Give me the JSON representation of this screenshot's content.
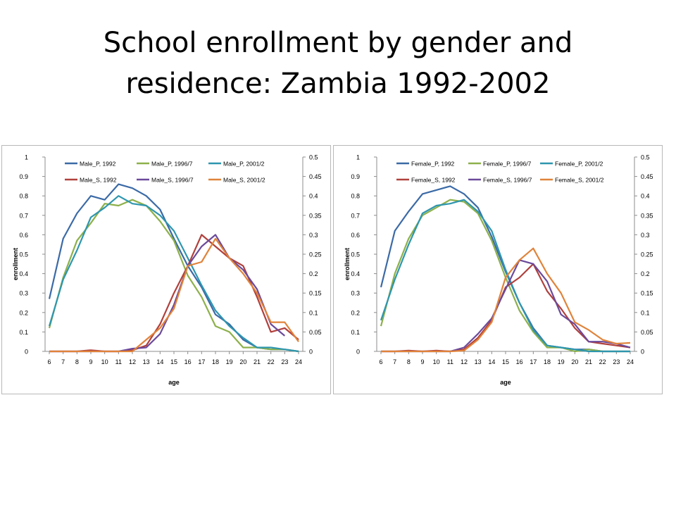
{
  "slide": {
    "title_line1": "School enrollment by gender and",
    "title_line2": "residence: Zambia 1992-2002"
  },
  "chart_data": [
    {
      "type": "line",
      "ylabel": "enrollment",
      "xlabel": "age",
      "x": [
        6,
        7,
        8,
        9,
        10,
        11,
        12,
        13,
        14,
        15,
        16,
        17,
        18,
        19,
        20,
        21,
        22,
        23,
        24
      ],
      "ylim": [
        0,
        1
      ],
      "y_ticks": [
        "0",
        "0.1",
        "0.2",
        "0.3",
        "0.4",
        "0.5",
        "0.6",
        "0.7",
        "0.8",
        "0.9",
        "1"
      ],
      "y2lim": [
        0,
        0.5
      ],
      "y2_ticks": [
        "0",
        "0.05",
        "0.1",
        "0.15",
        "0.2",
        "0.25",
        "0.3",
        "0.35",
        "0.4",
        "0.45",
        "0.5"
      ],
      "legend_position": "top",
      "series": [
        {
          "name": "Male_P, 1992",
          "axis": "left",
          "color": "#3b6aa6",
          "values": [
            0.27,
            0.58,
            0.71,
            0.8,
            0.78,
            0.86,
            0.84,
            0.8,
            0.73,
            0.58,
            0.44,
            0.33,
            0.19,
            0.14,
            0.06,
            0.02,
            0.01,
            0.01,
            0.0
          ]
        },
        {
          "name": "Male_P, 1996/7",
          "axis": "left",
          "color": "#8db04a",
          "values": [
            0.12,
            0.38,
            0.57,
            0.66,
            0.76,
            0.75,
            0.78,
            0.75,
            0.67,
            0.57,
            0.39,
            0.28,
            0.13,
            0.1,
            0.02,
            0.02,
            0.01,
            0.01,
            0.0
          ]
        },
        {
          "name": "Male_P, 2001/2",
          "axis": "left",
          "color": "#2e96ae",
          "values": [
            0.13,
            0.37,
            0.52,
            0.69,
            0.74,
            0.8,
            0.76,
            0.75,
            0.7,
            0.62,
            0.48,
            0.34,
            0.21,
            0.13,
            0.07,
            0.02,
            0.02,
            0.01,
            0.0
          ]
        },
        {
          "name": "Male_S, 1992",
          "axis": "right",
          "color": "#b0403c",
          "values": [
            0,
            0,
            0,
            0.003,
            0,
            0,
            0.003,
            0.015,
            0.07,
            0.15,
            0.22,
            0.3,
            0.27,
            0.24,
            0.22,
            0.14,
            0.05,
            0.06,
            0.03
          ]
        },
        {
          "name": "Male_S, 1996/7",
          "axis": "right",
          "color": "#6b4a9b",
          "values": [
            0,
            0,
            0,
            0,
            0,
            0,
            0.007,
            0.01,
            0.045,
            0.12,
            0.22,
            0.27,
            0.3,
            0.24,
            0.21,
            0.16,
            0.07,
            0.04,
            null
          ]
        },
        {
          "name": "Male_S, 2001/2",
          "axis": "right",
          "color": "#e0833a",
          "values": [
            0,
            0,
            0,
            0,
            0,
            0,
            0,
            0.03,
            0.06,
            0.11,
            0.22,
            0.23,
            0.29,
            0.24,
            0.2,
            0.15,
            0.075,
            0.075,
            0.025
          ]
        }
      ]
    },
    {
      "type": "line",
      "ylabel": "enrollment",
      "xlabel": "age",
      "x": [
        6,
        7,
        8,
        9,
        10,
        11,
        12,
        13,
        14,
        15,
        16,
        17,
        18,
        19,
        20,
        21,
        22,
        23,
        24
      ],
      "ylim": [
        0,
        1
      ],
      "y_ticks": [
        "0",
        "0.1",
        "0.2",
        "0.3",
        "0.4",
        "0.5",
        "0.6",
        "0.7",
        "0.8",
        "0.9",
        "1"
      ],
      "y2lim": [
        0,
        0.5
      ],
      "y2_ticks": [
        "0",
        "0.05",
        "0.1",
        "0.15",
        "0.2",
        "0.25",
        "0.3",
        "0.35",
        "0.4",
        "0.45",
        "0.5"
      ],
      "legend_position": "top",
      "series": [
        {
          "name": "Female_P, 1992",
          "axis": "left",
          "color": "#3b6aa6",
          "values": [
            0.33,
            0.62,
            0.72,
            0.81,
            0.83,
            0.85,
            0.81,
            0.74,
            0.59,
            0.41,
            0.25,
            0.12,
            0.03,
            0.02,
            0.01,
            0.01,
            0.0,
            0.0,
            0.0
          ]
        },
        {
          "name": "Female_P, 1996/7",
          "axis": "left",
          "color": "#8db04a",
          "values": [
            0.13,
            0.4,
            0.58,
            0.7,
            0.74,
            0.78,
            0.77,
            0.71,
            0.57,
            0.38,
            0.21,
            0.1,
            0.02,
            0.02,
            0.0,
            0.01,
            0.0,
            0.0,
            0.0
          ]
        },
        {
          "name": "Female_P, 2001/2",
          "axis": "left",
          "color": "#2e96ae",
          "values": [
            0.16,
            0.37,
            0.55,
            0.71,
            0.75,
            0.76,
            0.78,
            0.72,
            0.62,
            0.42,
            0.25,
            0.11,
            0.03,
            0.02,
            0.01,
            0.0,
            0.0,
            0.0,
            0.0
          ]
        },
        {
          "name": "Female_S, 1992",
          "axis": "right",
          "color": "#b0403c",
          "values": [
            0,
            0,
            0.002,
            0,
            0.002,
            0,
            0.005,
            0.035,
            0.08,
            0.165,
            0.19,
            0.225,
            0.155,
            0.11,
            0.06,
            0.025,
            0.02,
            0.015,
            0.01
          ]
        },
        {
          "name": "Female_S, 1996/7",
          "axis": "right",
          "color": "#6b4a9b",
          "values": [
            0,
            0,
            0,
            0,
            0,
            0,
            0.01,
            0.045,
            0.085,
            0.16,
            0.235,
            0.225,
            0.18,
            0.095,
            0.07,
            0.025,
            0.025,
            0.02,
            0.01
          ]
        },
        {
          "name": "Female_S, 2001/2",
          "axis": "right",
          "color": "#e0833a",
          "values": [
            0,
            0,
            0,
            0,
            0,
            0,
            0.002,
            0.03,
            0.075,
            0.19,
            0.235,
            0.265,
            0.2,
            0.15,
            0.075,
            0.055,
            0.03,
            0.02,
            0.022
          ]
        }
      ]
    }
  ]
}
